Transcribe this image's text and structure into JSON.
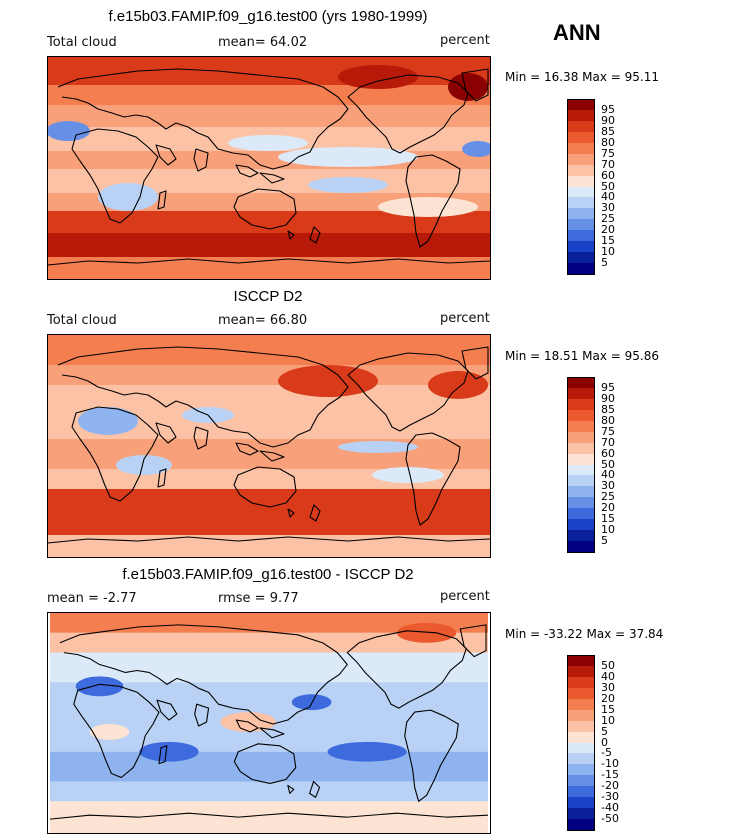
{
  "season": "ANN",
  "panels": [
    {
      "title": "f.e15b03.FAMIP.f09_g16.test00 (yrs 1980-1999)",
      "left_label": "Total cloud",
      "center_label": "mean=  64.02",
      "units": "percent",
      "minmax": "Min =  16.38 Max =  95.11",
      "colorbar_labels": [
        "95",
        "90",
        "85",
        "80",
        "75",
        "70",
        "60",
        "50",
        "40",
        "30",
        "25",
        "20",
        "15",
        "10",
        "5"
      ],
      "colorbar_colors": [
        "#8b0000",
        "#b81a0a",
        "#d93a1a",
        "#ea5a2e",
        "#f47e50",
        "#f8a07a",
        "#fbc2a6",
        "#fde3d3",
        "#dce9f8",
        "#b8d1f4",
        "#8fb3ee",
        "#6690e6",
        "#3d6add",
        "#1a42c8",
        "#0a1f9a",
        "#000080"
      ],
      "map_style": "model"
    },
    {
      "title": "ISCCP D2",
      "left_label": "Total cloud",
      "center_label": "mean=  66.80",
      "units": "percent",
      "minmax": "Min =  18.51 Max =  95.86",
      "colorbar_labels": [
        "95",
        "90",
        "85",
        "80",
        "75",
        "70",
        "60",
        "50",
        "40",
        "30",
        "25",
        "20",
        "15",
        "10",
        "5"
      ],
      "colorbar_colors": [
        "#8b0000",
        "#b81a0a",
        "#d93a1a",
        "#ea5a2e",
        "#f47e50",
        "#f8a07a",
        "#fbc2a6",
        "#fde3d3",
        "#dce9f8",
        "#b8d1f4",
        "#8fb3ee",
        "#6690e6",
        "#3d6add",
        "#1a42c8",
        "#0a1f9a",
        "#000080"
      ],
      "map_style": "obs"
    },
    {
      "title": "f.e15b03.FAMIP.f09_g16.test00 - ISCCP D2",
      "left_label": "mean =   -2.77",
      "center_label": "rmse =    9.77",
      "units": "percent",
      "minmax": "Min = -33.22 Max =  37.84",
      "colorbar_labels": [
        "50",
        "40",
        "30",
        "20",
        "15",
        "10",
        "5",
        "0",
        "-5",
        "-10",
        "-15",
        "-20",
        "-30",
        "-40",
        "-50"
      ],
      "colorbar_colors": [
        "#8b0000",
        "#b81a0a",
        "#d93a1a",
        "#ea5a2e",
        "#f47e50",
        "#f8a07a",
        "#fbc2a6",
        "#fde3d3",
        "#dce9f8",
        "#b8d1f4",
        "#8fb3ee",
        "#6690e6",
        "#3d6add",
        "#1a42c8",
        "#0a1f9a",
        "#000080"
      ],
      "map_style": "diff"
    }
  ]
}
